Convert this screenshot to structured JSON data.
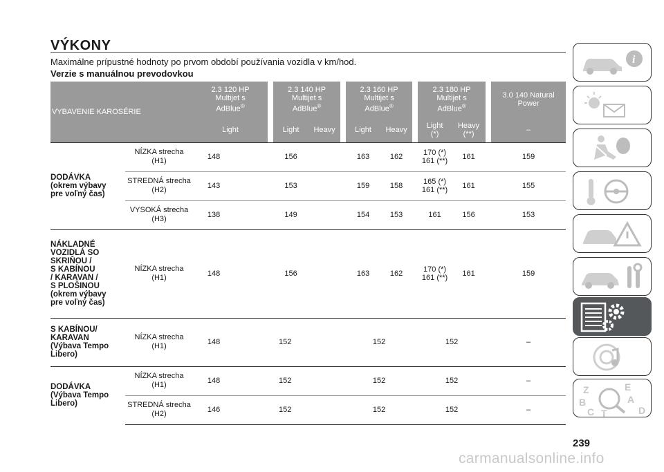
{
  "title": "VÝKONY",
  "subtitle": "Maximálne prípustné hodnoty po prvom období používania vozidla v km/hod.",
  "subheading": "Verzie s manuálnou prevodovkou",
  "table": {
    "header_left": "VYBAVENIE KAROSÉRIE",
    "engines": [
      {
        "line1": "2.3 120 HP",
        "line2": "Multijet s",
        "line3": "AdBlue",
        "sup": "®"
      },
      {
        "line1": "2.3 140 HP",
        "line2": "Multijet s",
        "line3": "AdBlue",
        "sup": "®"
      },
      {
        "line1": "2.3 160 HP",
        "line2": "Multijet s",
        "line3": "AdBlue",
        "sup": "®"
      },
      {
        "line1": "2.3 180 HP",
        "line2": "Multijet s",
        "line3": "AdBlue",
        "sup": "®"
      },
      {
        "line1": "3.0 140 Natural",
        "line2": "Power"
      }
    ],
    "sub": [
      "Light",
      "Light",
      "Heavy",
      "Light",
      "Heavy",
      "Light",
      "(*)",
      "Heavy",
      "(**)",
      "–"
    ],
    "groups": [
      {
        "category": [
          "DODÁVKA",
          "(okrem výbavy",
          "pre voľný čas)"
        ],
        "rows": [
          {
            "cond1": "NÍZKA strecha",
            "cond2": "(H1)",
            "v": [
              "148",
              "156",
              "163",
              "162",
              "170 (*)",
              "161 (**)",
              "161",
              "159"
            ]
          },
          {
            "cond1": "STREDNÁ strecha",
            "cond2": "(H2)",
            "v": [
              "143",
              "153",
              "159",
              "158",
              "165 (*)",
              "161 (**)",
              "161",
              "155"
            ]
          },
          {
            "cond1": "VYSOKÁ strecha",
            "cond2": "(H3)",
            "v": [
              "138",
              "149",
              "154",
              "153",
              "161",
              "156",
              "153"
            ]
          }
        ]
      },
      {
        "category": [
          "NÁKLADNÉ",
          "VOZIDLÁ SO",
          "SKRIŇOU /",
          "S KABÍNOU",
          "/ KARAVAN /",
          "S PLOŠINOU",
          "(okrem výbavy",
          "pre voľný čas)"
        ],
        "rows": [
          {
            "cond1": "NÍZKA strecha",
            "cond2": "(H1)",
            "v": [
              "148",
              "156",
              "163",
              "162",
              "170 (*)",
              "161 (**)",
              "161",
              "159"
            ]
          }
        ]
      },
      {
        "category": [
          "S KABÍNOU/",
          "KARAVAN",
          "(Výbava Tempo",
          "Libero)"
        ],
        "rows": [
          {
            "cond1": "NÍZKA strecha",
            "cond2": "(H1)",
            "v": [
              "148",
              "152",
              "152",
              "152",
              "–"
            ]
          }
        ]
      },
      {
        "category": [
          "DODÁVKA",
          "(Výbava Tempo",
          "Libero)"
        ],
        "rows": [
          {
            "cond1": "NÍZKA strecha",
            "cond2": "(H1)",
            "v": [
              "148",
              "152",
              "152",
              "152",
              "–"
            ]
          },
          {
            "cond1": "STREDNÁ strecha",
            "cond2": "(H2)",
            "v": [
              "146",
              "152",
              "152",
              "152",
              "–"
            ]
          }
        ]
      }
    ]
  },
  "page_number": "239",
  "watermark": "carmanualsonline.info",
  "side_tabs": [
    {
      "icon": "car-info-icon",
      "active": false
    },
    {
      "icon": "warning-lights-message-icon",
      "active": false
    },
    {
      "icon": "airbag-seatbelt-icon",
      "active": false
    },
    {
      "icon": "steering-key-icon",
      "active": false
    },
    {
      "icon": "car-hazard-icon",
      "active": false
    },
    {
      "icon": "car-tools-icon",
      "active": false
    },
    {
      "icon": "technical-data-gear-icon",
      "active": true
    },
    {
      "icon": "multimedia-music-icon",
      "active": false
    },
    {
      "icon": "alphabetical-index-icon",
      "active": false
    }
  ],
  "index_letters": [
    "Z",
    "E",
    "B",
    "A",
    "C",
    "T",
    "D"
  ],
  "colors": {
    "header_gray": "#9a9a9a",
    "active_tab": "#55585b"
  }
}
